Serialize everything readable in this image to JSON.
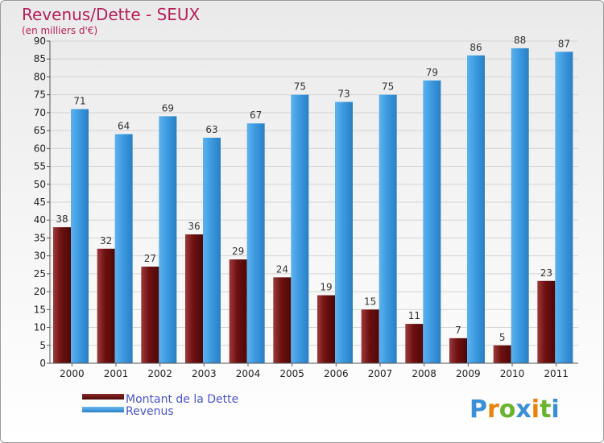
{
  "chart_data": {
    "type": "bar",
    "title": "Revenus/Dette - SEUX",
    "subtitle": "(en milliers d'€)",
    "categories": [
      "2000",
      "2001",
      "2002",
      "2003",
      "2004",
      "2005",
      "2006",
      "2007",
      "2008",
      "2009",
      "2010",
      "2011"
    ],
    "series": [
      {
        "name": "Montant de la Dette",
        "color": "#7a1515",
        "values": [
          38,
          32,
          27,
          36,
          29,
          24,
          19,
          15,
          11,
          7,
          5,
          23
        ]
      },
      {
        "name": "Revenus",
        "color": "#3a98e0",
        "values": [
          71,
          64,
          69,
          63,
          67,
          75,
          73,
          75,
          79,
          86,
          88,
          87
        ]
      }
    ],
    "ylim": [
      0,
      90
    ],
    "yticks": [
      0,
      5,
      10,
      15,
      20,
      25,
      30,
      35,
      40,
      45,
      50,
      55,
      60,
      65,
      70,
      75,
      80,
      85,
      90
    ],
    "grid": true,
    "legend_position": "bottom-left"
  },
  "brand": {
    "letters": [
      "P",
      "r",
      "o",
      "x",
      "i",
      "t",
      "i"
    ],
    "colors": [
      "#3a8fd6",
      "#e8820c",
      "#69b32e",
      "#3a8fd6",
      "#e8820c",
      "#69b32e",
      "#3a8fd6"
    ]
  }
}
